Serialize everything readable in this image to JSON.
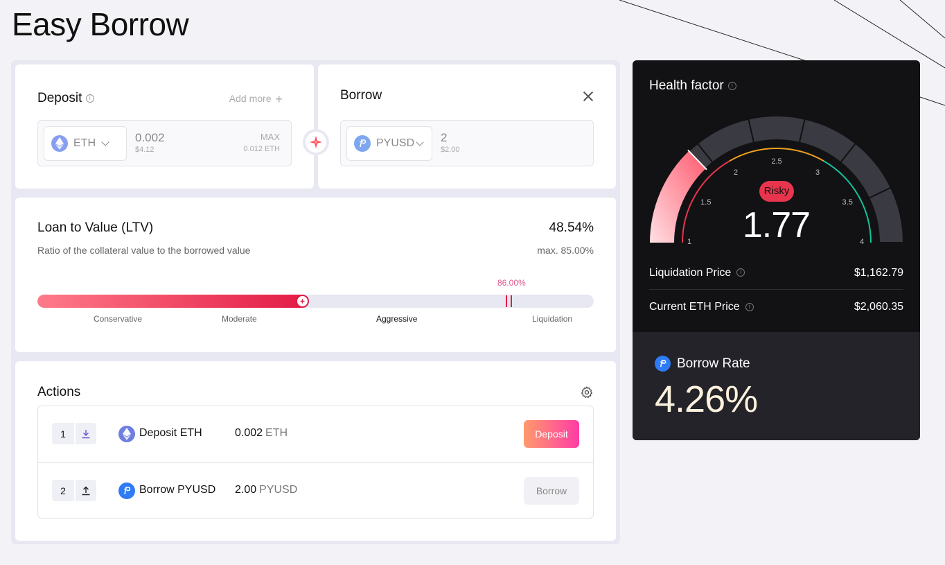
{
  "page": {
    "title": "Easy Borrow"
  },
  "deposit": {
    "title": "Deposit",
    "add_more": "Add more",
    "asset": "ETH",
    "amount": "0.002",
    "amount_usd": "$4.12",
    "max_label": "MAX",
    "max_value": "0.012 ETH"
  },
  "borrow": {
    "title": "Borrow",
    "asset": "PYUSD",
    "amount": "2",
    "amount_usd": "$2.00"
  },
  "ltv": {
    "title": "Loan to Value (LTV)",
    "value": "48.54%",
    "description": "Ratio of the collateral value to the borrowed value",
    "max": "max. 85.00%",
    "liquidation_pct": "86.00%",
    "fill_fraction": 0.4854,
    "liquidation_fraction": 0.86,
    "labels": [
      "Conservative",
      "Moderate",
      "Aggressive",
      "Liquidation"
    ],
    "active_label": "Aggressive"
  },
  "actions": {
    "title": "Actions",
    "rows": [
      {
        "step": "1",
        "label": "Deposit ETH",
        "amount": "0.002",
        "unit": "ETH",
        "button": "Deposit"
      },
      {
        "step": "2",
        "label": "Borrow PYUSD",
        "amount": "2.00",
        "unit": "PYUSD",
        "button": "Borrow"
      }
    ]
  },
  "health": {
    "title": "Health factor",
    "status": "Risky",
    "value": "1.77",
    "ticks": [
      "1",
      "1.5",
      "2",
      "2.5",
      "3",
      "3.5",
      "4"
    ],
    "liquidation_price_label": "Liquidation Price",
    "liquidation_price": "$1,162.79",
    "current_price_label": "Current ETH Price",
    "current_price": "$2,060.35",
    "colors": {
      "risky": "#e8354d",
      "warning": "#f0a020",
      "safe": "#14c39a"
    }
  },
  "rate": {
    "label": "Borrow Rate",
    "value": "4.26%"
  }
}
